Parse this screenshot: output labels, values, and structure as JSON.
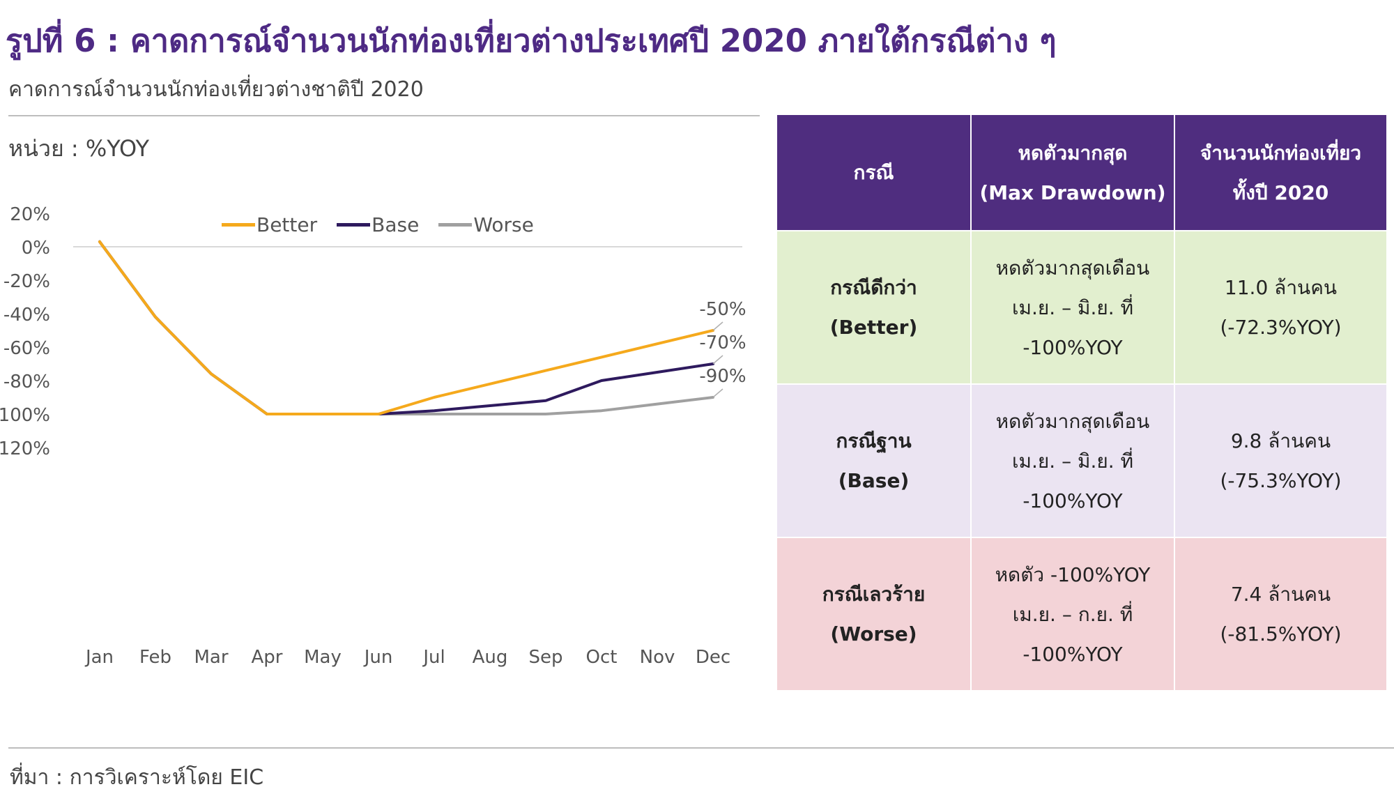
{
  "header": {
    "title": "รูปที่ 6 : คาดการณ์จำนวนนักท่องเที่ยวต่างประเทศปี 2020 ภายใต้กรณีต่าง ๆ",
    "subtitle": "คาดการณ์จำนวนนักท่องเที่ยวต่างชาติปี 2020"
  },
  "chart_data": {
    "type": "line",
    "ylabel": "หน่วย : %YOY",
    "categories": [
      "Jan",
      "Feb",
      "Mar",
      "Apr",
      "May",
      "Jun",
      "Jul",
      "Aug",
      "Sep",
      "Oct",
      "Nov",
      "Dec"
    ],
    "y_ticks": [
      {
        "value": 20,
        "label": "20%"
      },
      {
        "value": 0,
        "label": "0%"
      },
      {
        "value": -20,
        "label": "-20%"
      },
      {
        "value": -40,
        "label": "-40%"
      },
      {
        "value": -60,
        "label": "-60%"
      },
      {
        "value": -80,
        "label": "-80%"
      },
      {
        "value": -100,
        "label": "100%"
      },
      {
        "value": -120,
        "label": "120%"
      }
    ],
    "ylim": [
      -120,
      20
    ],
    "grid": false,
    "zero_line": true,
    "legend_position": "top-center",
    "series": [
      {
        "name": "Better",
        "color": "#f5a91c",
        "values": [
          3,
          -42,
          -76,
          -100,
          -100,
          -100,
          -90,
          -82,
          -74,
          -66,
          -58,
          -50
        ],
        "end_label": "-50%"
      },
      {
        "name": "Base",
        "color": "#2e1a5e",
        "values": [
          3,
          -42,
          -76,
          -100,
          -100,
          -100,
          -98,
          -95,
          -92,
          -80,
          -75,
          -70
        ],
        "end_label": "-70%"
      },
      {
        "name": "Worse",
        "color": "#a0a0a0",
        "values": [
          3,
          -42,
          -76,
          -100,
          -100,
          -100,
          -100,
          -100,
          -100,
          -98,
          -94,
          -90
        ],
        "end_label": "-90%"
      }
    ]
  },
  "table": {
    "headers": [
      {
        "lines": [
          "กรณี"
        ]
      },
      {
        "lines": [
          "หดตัวมากสุด",
          "(Max Drawdown)"
        ]
      },
      {
        "lines": [
          "จำนวนนักท่องเที่ยว",
          "ทั้งปี 2020"
        ]
      }
    ],
    "rows": [
      {
        "case": [
          "กรณีดีกว่า",
          "(Better)"
        ],
        "drawdown": [
          "หดตัวมากสุดเดือน",
          "เม.ย. – มิ.ย. ที่",
          "-100%YOY"
        ],
        "tourists": [
          "11.0 ล้านคน",
          "(-72.3%YOY)"
        ]
      },
      {
        "case": [
          "กรณีฐาน",
          "(Base)"
        ],
        "drawdown": [
          "หดตัวมากสุดเดือน",
          "เม.ย. – มิ.ย. ที่",
          "-100%YOY"
        ],
        "tourists": [
          "9.8 ล้านคน",
          "(-75.3%YOY)"
        ]
      },
      {
        "case": [
          "กรณีเลวร้าย",
          "(Worse)"
        ],
        "drawdown": [
          "หดตัว -100%YOY",
          "เม.ย. – ก.ย. ที่",
          "-100%YOY"
        ],
        "tourists": [
          "7.4 ล้านคน",
          "(-81.5%YOY)"
        ]
      }
    ],
    "colors": {
      "header_bg": "#4f2d7f",
      "better_bg": "#e2efcf",
      "base_bg": "#ebe4f2",
      "worse_bg": "#f3d3d7"
    }
  },
  "footer": {
    "source": "ที่มา : การวิเคราะห์โดย EIC"
  }
}
